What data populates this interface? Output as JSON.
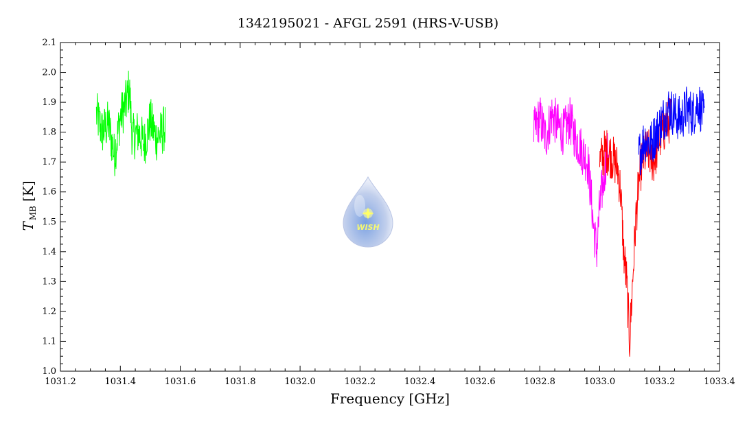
{
  "chart_data": {
    "type": "line",
    "title": "1342195021 - AFGL 2591 (HRS-V-USB)",
    "xlabel": "Frequency [GHz]",
    "ylabel_main": "T",
    "ylabel_sub": "MB",
    "ylabel_unit": "[K]",
    "xlim": [
      1031.2,
      1033.4
    ],
    "ylim": [
      1.0,
      2.1
    ],
    "x_ticks": [
      "1031.2",
      "1031.4",
      "1031.6",
      "1031.8",
      "1032.0",
      "1032.2",
      "1032.4",
      "1032.6",
      "1032.8",
      "1033.0",
      "1033.2",
      "1033.4"
    ],
    "y_ticks": [
      "1.0",
      "1.1",
      "1.2",
      "1.3",
      "1.4",
      "1.5",
      "1.6",
      "1.7",
      "1.8",
      "1.9",
      "2.0",
      "2.1"
    ],
    "grid": false,
    "legend": "none",
    "logo": {
      "text": "WISH",
      "position_x": 1032.22,
      "position_y": 1.55
    },
    "series": [
      {
        "color": "#00ff00",
        "x": [
          1031.32,
          1031.34,
          1031.36,
          1031.38,
          1031.4,
          1031.42,
          1031.43,
          1031.44,
          1031.46,
          1031.48,
          1031.5,
          1031.52,
          1031.54,
          1031.55
        ],
        "y": [
          1.86,
          1.8,
          1.83,
          1.72,
          1.85,
          1.9,
          1.95,
          1.78,
          1.8,
          1.76,
          1.84,
          1.78,
          1.8,
          1.82
        ]
      },
      {
        "color": "#ff00ff",
        "x": [
          1032.78,
          1032.8,
          1032.82,
          1032.84,
          1032.86,
          1032.88,
          1032.9,
          1032.92,
          1032.94,
          1032.96,
          1032.97,
          1032.98,
          1032.99,
          1033.0,
          1033.01,
          1033.02,
          1033.03
        ],
        "y": [
          1.8,
          1.85,
          1.78,
          1.86,
          1.82,
          1.8,
          1.84,
          1.78,
          1.74,
          1.7,
          1.6,
          1.48,
          1.4,
          1.55,
          1.62,
          1.7,
          1.74
        ]
      },
      {
        "color": "#ff0000",
        "x": [
          1033.0,
          1033.02,
          1033.04,
          1033.06,
          1033.07,
          1033.08,
          1033.09,
          1033.1,
          1033.11,
          1033.12,
          1033.13,
          1033.14,
          1033.16,
          1033.18,
          1033.2,
          1033.22,
          1033.24
        ],
        "y": [
          1.7,
          1.74,
          1.72,
          1.68,
          1.6,
          1.4,
          1.3,
          1.1,
          1.3,
          1.5,
          1.62,
          1.7,
          1.74,
          1.7,
          1.78,
          1.82,
          1.85
        ]
      },
      {
        "color": "#0000ff",
        "x": [
          1033.13,
          1033.15,
          1033.17,
          1033.19,
          1033.21,
          1033.23,
          1033.25,
          1033.27,
          1033.29,
          1033.31,
          1033.33,
          1033.35
        ],
        "y": [
          1.72,
          1.78,
          1.76,
          1.8,
          1.84,
          1.88,
          1.86,
          1.84,
          1.88,
          1.86,
          1.9,
          1.84
        ]
      }
    ]
  }
}
